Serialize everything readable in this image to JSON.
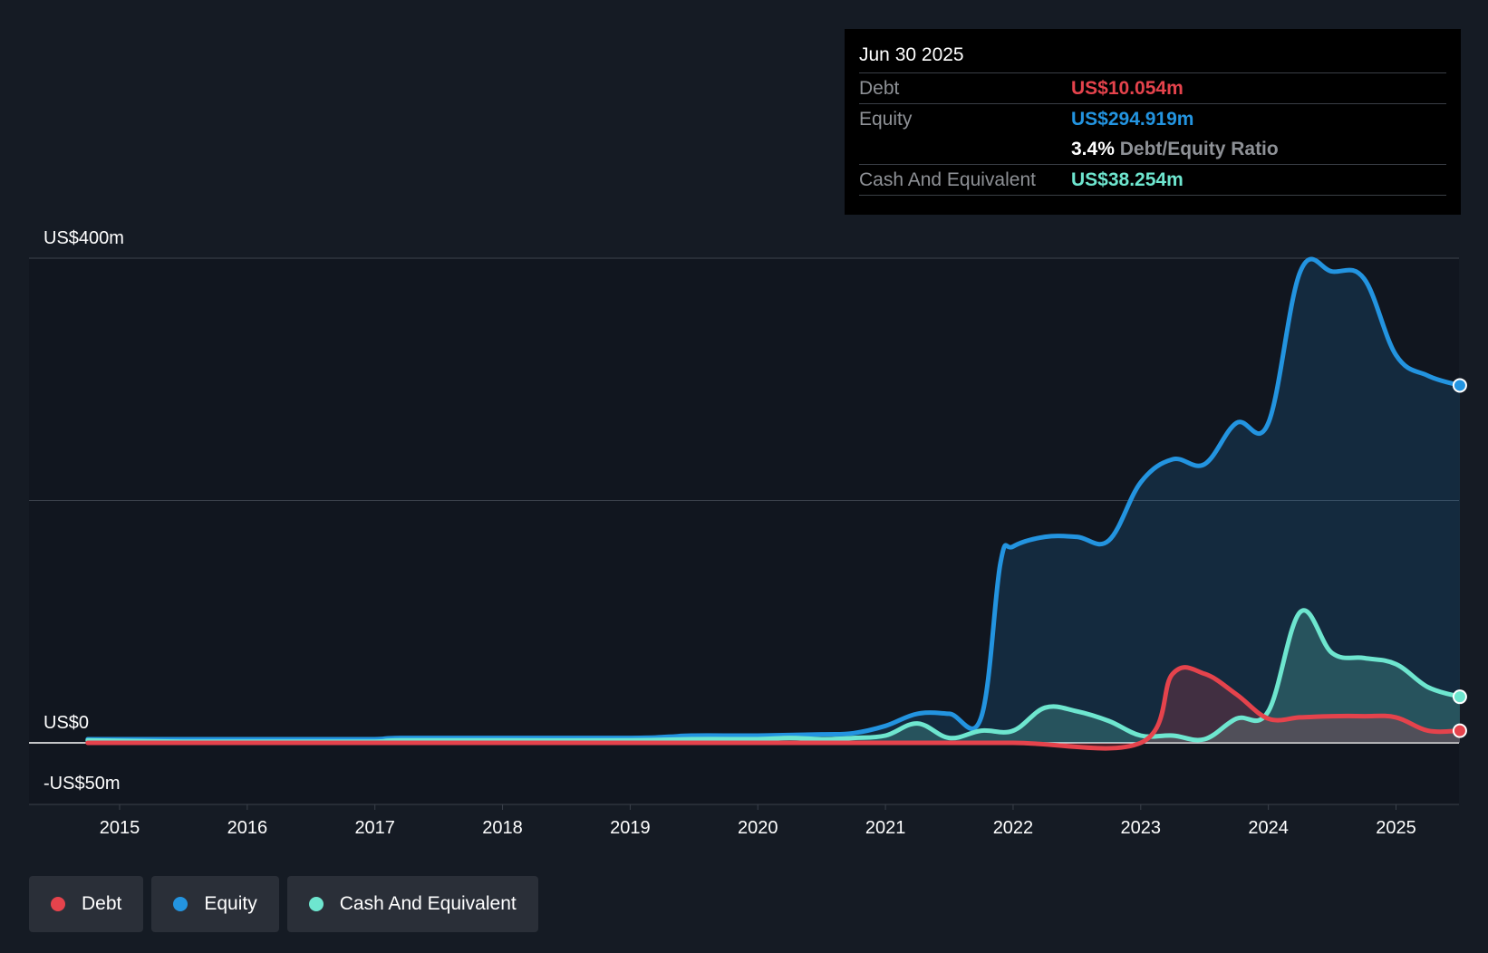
{
  "tooltip": {
    "date": "Jun 30 2025",
    "rows": [
      {
        "label": "Debt",
        "value": "US$10.054m"
      },
      {
        "label": "Equity",
        "value": "US$294.919m"
      },
      {
        "label": "Cash And Equivalent",
        "value": "US$38.254m"
      }
    ],
    "ratio_value": "3.4%",
    "ratio_label": "Debt/Equity Ratio"
  },
  "legend": [
    {
      "label": "Debt",
      "color": "#e5434c"
    },
    {
      "label": "Equity",
      "color": "#2394e0"
    },
    {
      "label": "Cash And Equivalent",
      "color": "#6ee6cf"
    }
  ],
  "chart_data": {
    "type": "area",
    "title": "",
    "xlabel": "",
    "ylabel": "",
    "ylim": [
      -50,
      400
    ],
    "y_tick_labels": [
      {
        "value": 400,
        "label": "US$400m"
      },
      {
        "value": 0,
        "label": "US$0"
      },
      {
        "value": -50,
        "label": "-US$50m"
      }
    ],
    "gridline_values": [
      400,
      200,
      0
    ],
    "x_ticks": [
      "2015",
      "2016",
      "2017",
      "2018",
      "2019",
      "2020",
      "2021",
      "2022",
      "2023",
      "2024",
      "2025"
    ],
    "xlim": [
      2014.7,
      2025.5
    ],
    "grid": true,
    "legend_position": "bottom-left",
    "series": [
      {
        "name": "Equity",
        "color": "#2394e0",
        "points": [
          [
            2014.75,
            3
          ],
          [
            2015.5,
            3
          ],
          [
            2016.5,
            3
          ],
          [
            2017.0,
            3
          ],
          [
            2017.2,
            4
          ],
          [
            2018.0,
            4
          ],
          [
            2019.0,
            4
          ],
          [
            2019.3,
            5
          ],
          [
            2019.5,
            6
          ],
          [
            2020.0,
            6
          ],
          [
            2020.5,
            7
          ],
          [
            2020.75,
            8
          ],
          [
            2021.0,
            14
          ],
          [
            2021.25,
            24
          ],
          [
            2021.5,
            24
          ],
          [
            2021.75,
            21
          ],
          [
            2021.9,
            148
          ],
          [
            2022.0,
            162
          ],
          [
            2022.25,
            170
          ],
          [
            2022.5,
            170
          ],
          [
            2022.75,
            167
          ],
          [
            2023.0,
            215
          ],
          [
            2023.25,
            234
          ],
          [
            2023.5,
            230
          ],
          [
            2023.75,
            264
          ],
          [
            2024.0,
            264
          ],
          [
            2024.25,
            389
          ],
          [
            2024.5,
            389
          ],
          [
            2024.75,
            383
          ],
          [
            2025.0,
            320
          ],
          [
            2025.25,
            303
          ],
          [
            2025.5,
            295
          ]
        ]
      },
      {
        "name": "Cash And Equivalent",
        "color": "#6ee6cf",
        "points": [
          [
            2014.75,
            2
          ],
          [
            2015.5,
            1
          ],
          [
            2016.5,
            1
          ],
          [
            2017.0,
            1
          ],
          [
            2017.2,
            2
          ],
          [
            2018.0,
            2
          ],
          [
            2019.0,
            2
          ],
          [
            2019.5,
            3
          ],
          [
            2020.0,
            3
          ],
          [
            2020.25,
            4
          ],
          [
            2020.5,
            3
          ],
          [
            2020.75,
            4
          ],
          [
            2021.0,
            6
          ],
          [
            2021.25,
            16
          ],
          [
            2021.5,
            4
          ],
          [
            2021.75,
            10
          ],
          [
            2022.0,
            10
          ],
          [
            2022.25,
            29
          ],
          [
            2022.5,
            26
          ],
          [
            2022.75,
            18
          ],
          [
            2023.0,
            6
          ],
          [
            2023.25,
            6
          ],
          [
            2023.5,
            3
          ],
          [
            2023.75,
            20
          ],
          [
            2024.0,
            26
          ],
          [
            2024.25,
            108
          ],
          [
            2024.5,
            74
          ],
          [
            2024.75,
            70
          ],
          [
            2025.0,
            65
          ],
          [
            2025.25,
            46
          ],
          [
            2025.5,
            38
          ]
        ]
      },
      {
        "name": "Debt",
        "color": "#e5434c",
        "points": [
          [
            2014.75,
            0
          ],
          [
            2016.0,
            0
          ],
          [
            2017.0,
            0
          ],
          [
            2018.0,
            0
          ],
          [
            2019.0,
            0
          ],
          [
            2020.0,
            0
          ],
          [
            2021.0,
            0
          ],
          [
            2022.0,
            0
          ],
          [
            2023.0,
            0
          ],
          [
            2023.25,
            57
          ],
          [
            2023.5,
            57
          ],
          [
            2023.75,
            40
          ],
          [
            2024.0,
            20
          ],
          [
            2024.25,
            21
          ],
          [
            2024.5,
            22
          ],
          [
            2024.75,
            22
          ],
          [
            2025.0,
            21
          ],
          [
            2025.25,
            10
          ],
          [
            2025.5,
            10
          ]
        ]
      }
    ]
  }
}
